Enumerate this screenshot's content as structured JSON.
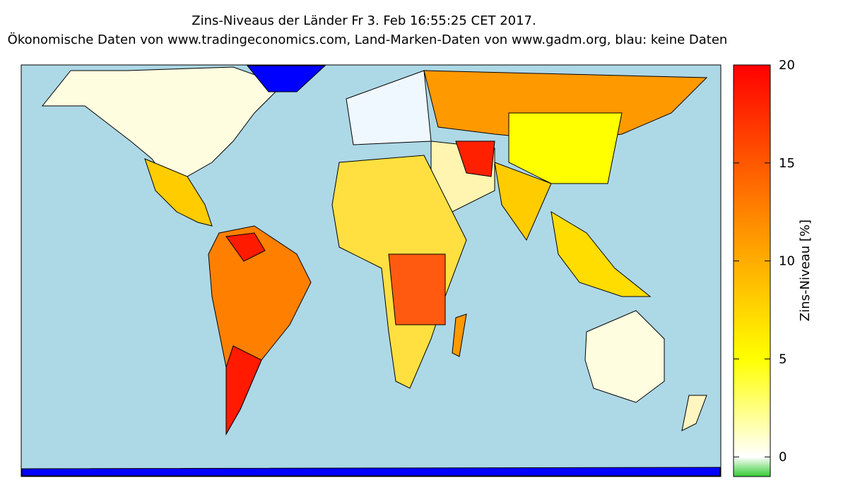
{
  "title": "Zins-Niveaus der Länder Fr 3. Feb 16:55:25 CET 2017.",
  "subtitle": "Ökonomische Daten von www.tradingeconomics.com, Land-Marken-Daten von www.gadm.org, blau: keine Daten",
  "colorbar": {
    "label": "Zins-Niveau [%]",
    "range": [
      -1,
      20
    ],
    "ticks": [
      0,
      5,
      10,
      15,
      20
    ],
    "colors": [
      {
        "value": -1,
        "color": "#33cc33"
      },
      {
        "value": 0,
        "color": "#ffffff"
      },
      {
        "value": 5,
        "color": "#ffff00"
      },
      {
        "value": 12,
        "color": "#ff8c00"
      },
      {
        "value": 20,
        "color": "#ff0000"
      }
    ]
  }
}
